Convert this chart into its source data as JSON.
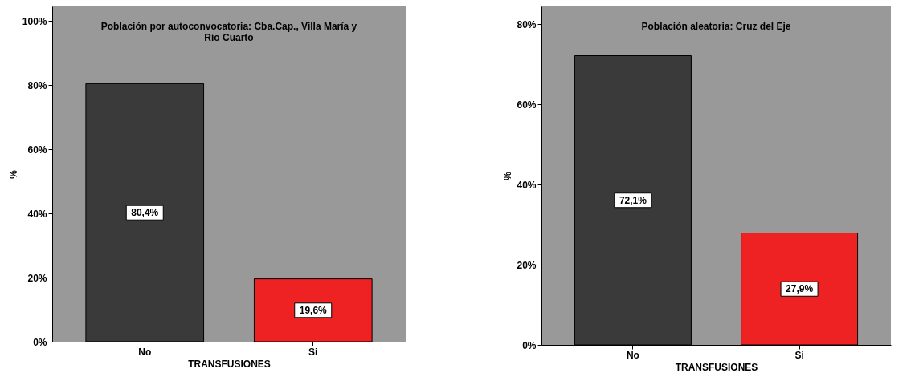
{
  "chart_data": [
    {
      "type": "bar",
      "title": "Población por autoconvocatoria: Cba.Cap., Villa María y Río Cuarto",
      "xlabel": "TRANSFUSIONES",
      "ylabel": "%",
      "categories": [
        "No",
        "Si"
      ],
      "values": [
        80.4,
        19.6
      ],
      "colors": [
        "#3a3a3a",
        "#ee2222"
      ],
      "value_labels": [
        "80,4%",
        "19,6%"
      ],
      "ylim": [
        0,
        104.5
      ],
      "yticks": [
        {
          "value": 0,
          "label": "0%"
        },
        {
          "value": 20,
          "label": "20%"
        },
        {
          "value": 40,
          "label": "40%"
        },
        {
          "value": 60,
          "label": "60%"
        },
        {
          "value": 80,
          "label": "80%"
        },
        {
          "value": 100,
          "label": "100%"
        }
      ],
      "grid": false
    },
    {
      "type": "bar",
      "title": "Población aleatoria: Cruz del Eje",
      "xlabel": "TRANSFUSIONES",
      "ylabel": "%",
      "categories": [
        "No",
        "Si"
      ],
      "values": [
        72.1,
        27.9
      ],
      "colors": [
        "#3a3a3a",
        "#ee2222"
      ],
      "value_labels": [
        "72,1%",
        "27,9%"
      ],
      "ylim": [
        0,
        84.4
      ],
      "yticks": [
        {
          "value": 0,
          "label": "0%"
        },
        {
          "value": 20,
          "label": "20%"
        },
        {
          "value": 40,
          "label": "40%"
        },
        {
          "value": 60,
          "label": "60%"
        },
        {
          "value": 80,
          "label": "80%"
        }
      ],
      "grid": false
    }
  ]
}
